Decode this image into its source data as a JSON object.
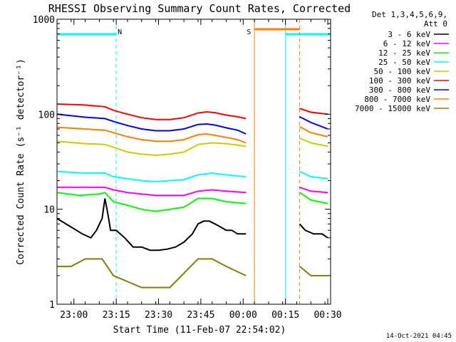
{
  "chart_data": {
    "type": "line",
    "title": "RHESSI Observing Summary Count Rates, Corrected",
    "xlabel": "Start Time (11-Feb-07 22:54:02)",
    "ylabel": "Corrected Count Rate (s⁻¹ detector⁻¹)",
    "x_unit": "minutes after 22:54:02",
    "xlim": [
      0,
      97
    ],
    "ylim": [
      1,
      1000
    ],
    "yscale": "log",
    "x_ticks": [
      {
        "v": 6,
        "label": "23:00"
      },
      {
        "v": 21,
        "label": "23:15"
      },
      {
        "v": 36,
        "label": "23:30"
      },
      {
        "v": 51,
        "label": "23:45"
      },
      {
        "v": 66,
        "label": "00:00"
      },
      {
        "v": 81,
        "label": "00:15"
      },
      {
        "v": 96,
        "label": "00:30"
      }
    ],
    "y_ticks": [
      {
        "v": 1,
        "label": "1"
      },
      {
        "v": 10,
        "label": "10"
      },
      {
        "v": 100,
        "label": "100"
      },
      {
        "v": 1000,
        "label": "1000"
      }
    ],
    "legend_header": [
      "Det 1,3,4,5,6,9,",
      "Att 0"
    ],
    "legend_position": "right",
    "series": [
      {
        "name": "3 - 6 keV",
        "color": "#000000",
        "points": [
          [
            0,
            8
          ],
          [
            5,
            6.5
          ],
          [
            9,
            5.5
          ],
          [
            12,
            5
          ],
          [
            14,
            6
          ],
          [
            16,
            8
          ],
          [
            17,
            13
          ],
          [
            18,
            9
          ],
          [
            19,
            6
          ],
          [
            21,
            6
          ],
          [
            24,
            5
          ],
          [
            27,
            4
          ],
          [
            30,
            4
          ],
          [
            33,
            3.7
          ],
          [
            36,
            3.7
          ],
          [
            39,
            3.8
          ],
          [
            42,
            4
          ],
          [
            45,
            4.5
          ],
          [
            48,
            5.5
          ],
          [
            50,
            7
          ],
          [
            52,
            7.5
          ],
          [
            54,
            7.5
          ],
          [
            56,
            7
          ],
          [
            58,
            6.5
          ],
          [
            60,
            6
          ],
          [
            62,
            6
          ],
          [
            64,
            5.5
          ],
          [
            67,
            5.5
          ]
        ],
        "segment2": [
          [
            86,
            7
          ],
          [
            88,
            6
          ],
          [
            91,
            5.5
          ],
          [
            94,
            5.5
          ],
          [
            96,
            5
          ]
        ]
      },
      {
        "name": "6 - 12 keV",
        "color": "#ff00ff",
        "points": [
          [
            0,
            17
          ],
          [
            10,
            17
          ],
          [
            17,
            17
          ],
          [
            20,
            16
          ],
          [
            25,
            15
          ],
          [
            30,
            14.5
          ],
          [
            35,
            14
          ],
          [
            40,
            14
          ],
          [
            45,
            14
          ],
          [
            50,
            15.5
          ],
          [
            55,
            16
          ],
          [
            60,
            15.5
          ],
          [
            67,
            15
          ]
        ],
        "segment2": [
          [
            86,
            17
          ],
          [
            90,
            15.5
          ],
          [
            96,
            15
          ]
        ]
      },
      {
        "name": "12 - 25 keV",
        "color": "#00ff00",
        "points": [
          [
            0,
            15
          ],
          [
            8,
            14
          ],
          [
            15,
            14.5
          ],
          [
            17,
            15
          ],
          [
            20,
            12
          ],
          [
            25,
            11
          ],
          [
            30,
            10
          ],
          [
            35,
            9.5
          ],
          [
            40,
            10
          ],
          [
            45,
            10.5
          ],
          [
            50,
            13
          ],
          [
            55,
            13
          ],
          [
            60,
            12
          ],
          [
            67,
            11.5
          ]
        ],
        "segment2": [
          [
            86,
            15
          ],
          [
            90,
            12.5
          ],
          [
            96,
            11.5
          ]
        ]
      },
      {
        "name": "25 - 50 keV",
        "color": "#00ffff",
        "points": [
          [
            0,
            25
          ],
          [
            10,
            24
          ],
          [
            17,
            24
          ],
          [
            20,
            22
          ],
          [
            25,
            21
          ],
          [
            30,
            20
          ],
          [
            35,
            19.5
          ],
          [
            40,
            20
          ],
          [
            45,
            20.5
          ],
          [
            50,
            23
          ],
          [
            55,
            24
          ],
          [
            60,
            23
          ],
          [
            67,
            22
          ]
        ],
        "segment2": [
          [
            86,
            25
          ],
          [
            90,
            22
          ],
          [
            96,
            21
          ]
        ]
      },
      {
        "name": "50 - 100 keV",
        "color": "#cccc00",
        "points": [
          [
            0,
            52
          ],
          [
            10,
            49
          ],
          [
            17,
            48
          ],
          [
            20,
            45
          ],
          [
            25,
            40
          ],
          [
            30,
            38
          ],
          [
            35,
            37
          ],
          [
            40,
            38
          ],
          [
            45,
            40
          ],
          [
            50,
            48
          ],
          [
            55,
            50
          ],
          [
            60,
            49
          ],
          [
            67,
            46
          ]
        ],
        "segment2": [
          [
            86,
            56
          ],
          [
            90,
            50
          ],
          [
            96,
            46
          ]
        ]
      },
      {
        "name": "100 - 300 keV",
        "color": "#ff0000",
        "points": [
          [
            0,
            128
          ],
          [
            10,
            125
          ],
          [
            17,
            120
          ],
          [
            20,
            110
          ],
          [
            25,
            100
          ],
          [
            30,
            92
          ],
          [
            35,
            88
          ],
          [
            40,
            88
          ],
          [
            45,
            92
          ],
          [
            50,
            103
          ],
          [
            53,
            106
          ],
          [
            56,
            104
          ],
          [
            60,
            98
          ],
          [
            64,
            94
          ],
          [
            67,
            90
          ]
        ],
        "segment2": [
          [
            86,
            115
          ],
          [
            90,
            105
          ],
          [
            96,
            100
          ]
        ]
      },
      {
        "name": "300 - 800 keV",
        "color": "#0000ff",
        "points": [
          [
            0,
            100
          ],
          [
            10,
            93
          ],
          [
            17,
            90
          ],
          [
            20,
            84
          ],
          [
            25,
            76
          ],
          [
            30,
            70
          ],
          [
            35,
            67
          ],
          [
            40,
            67
          ],
          [
            45,
            70
          ],
          [
            50,
            78
          ],
          [
            53,
            79
          ],
          [
            56,
            77
          ],
          [
            60,
            72
          ],
          [
            64,
            68
          ],
          [
            67,
            62
          ]
        ],
        "segment2": [
          [
            86,
            94
          ],
          [
            90,
            82
          ],
          [
            96,
            70
          ]
        ]
      },
      {
        "name": "800 - 7000 keV",
        "color": "#ff8000",
        "points": [
          [
            0,
            73
          ],
          [
            10,
            70
          ],
          [
            17,
            68
          ],
          [
            20,
            64
          ],
          [
            25,
            58
          ],
          [
            30,
            54
          ],
          [
            35,
            52
          ],
          [
            40,
            52
          ],
          [
            45,
            54
          ],
          [
            50,
            61
          ],
          [
            53,
            62
          ],
          [
            56,
            60
          ],
          [
            60,
            57
          ],
          [
            64,
            54
          ],
          [
            67,
            50
          ]
        ],
        "segment2": [
          [
            86,
            74
          ],
          [
            90,
            64
          ],
          [
            96,
            58
          ]
        ]
      },
      {
        "name": "7000 - 15000 keV",
        "color": "#808000",
        "points": [
          [
            0,
            2.5
          ],
          [
            5,
            2.5
          ],
          [
            10,
            3
          ],
          [
            16,
            3
          ],
          [
            20,
            2
          ],
          [
            30,
            1.5
          ],
          [
            40,
            1.5
          ],
          [
            50,
            3
          ],
          [
            55,
            3
          ],
          [
            60,
            2.5
          ],
          [
            67,
            2
          ]
        ],
        "segment2": [
          [
            86,
            2.5
          ],
          [
            90,
            2
          ],
          [
            96,
            2
          ]
        ]
      }
    ],
    "annotations": [
      {
        "label": "N",
        "color": "#00ffff",
        "x_text": 21.5
      },
      {
        "label": "S",
        "color": "#ff8000",
        "x_text": 67.3
      }
    ],
    "night_intervals": [
      [
        0,
        21
      ],
      [
        81,
        97
      ]
    ],
    "saa_interval": [
      70,
      86
    ],
    "timestamp": "14-Oct-2021 04:45"
  }
}
